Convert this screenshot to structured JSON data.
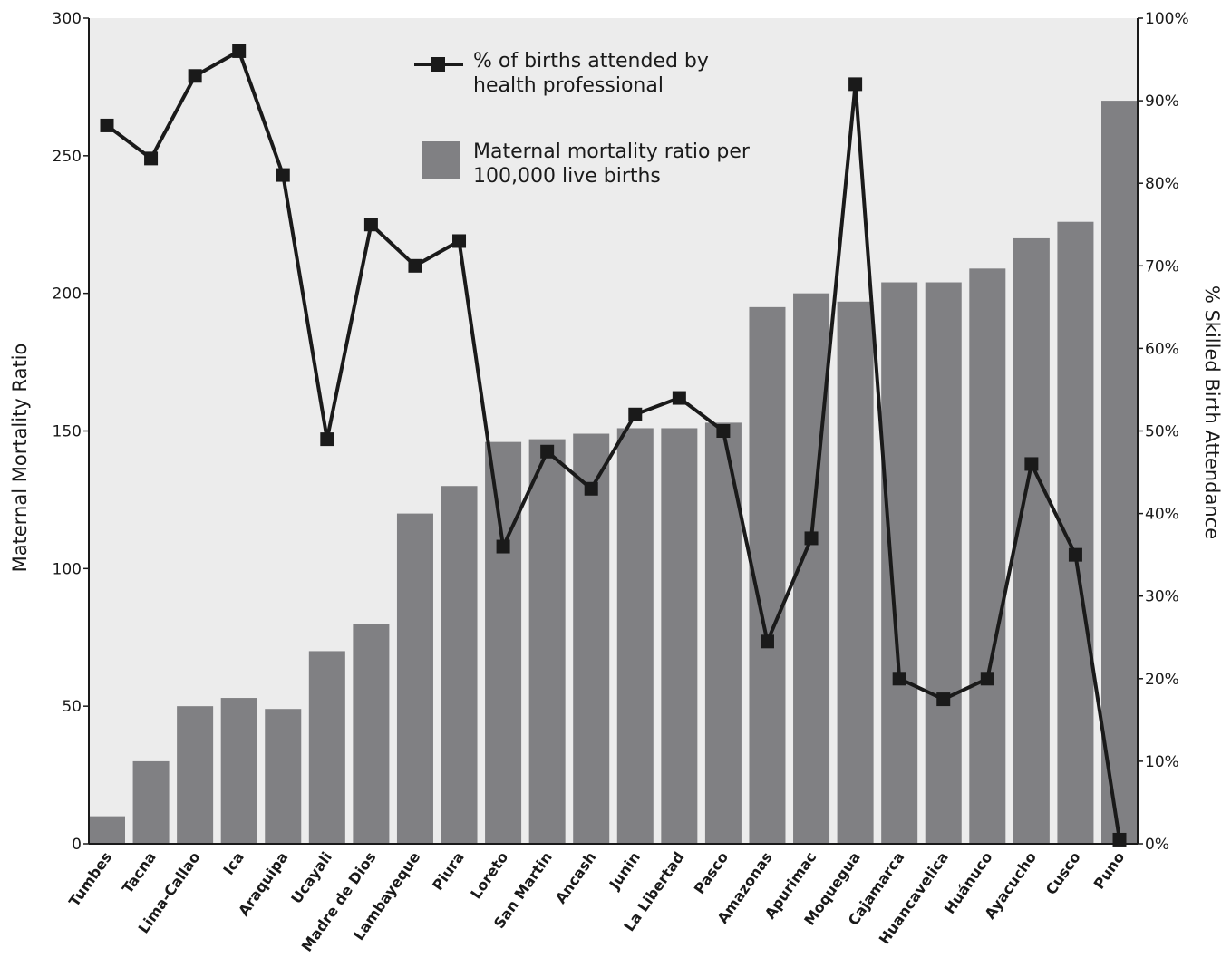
{
  "chart_data": {
    "type": "bar",
    "categories": [
      "Tumbes",
      "Tacna",
      "Lima-Callao",
      "Ica",
      "Araquipa",
      "Ucayali",
      "Madre de Dios",
      "Lambayeque",
      "Piura",
      "Loreto",
      "San Martin",
      "Ancash",
      "Junin",
      "La Libertad",
      "Pasco",
      "Amazonas",
      "Apurimac",
      "Moquegua",
      "Cajamarca",
      "Huancavelica",
      "Huánuco",
      "Ayacucho",
      "Cusco",
      "Puno"
    ],
    "series": [
      {
        "name": "Maternal mortality ratio per 100,000 live births",
        "type": "bar",
        "axis": "left",
        "values": [
          10,
          30,
          50,
          53,
          49,
          70,
          80,
          120,
          130,
          146,
          147,
          149,
          151,
          151,
          153,
          195,
          200,
          197,
          204,
          204,
          209,
          220,
          226,
          270
        ]
      },
      {
        "name": "% of births attended by health professional",
        "type": "line",
        "axis": "right",
        "values": [
          87,
          83,
          93,
          96,
          81,
          49,
          75,
          70,
          73,
          36,
          47.5,
          43,
          52,
          54,
          50,
          24.5,
          37,
          92,
          20,
          17.5,
          20,
          46,
          35,
          0.5
        ]
      }
    ],
    "left_axis": {
      "label": "Maternal Mortality Ratio",
      "range": [
        0,
        300
      ],
      "ticks": [
        "0",
        "50",
        "100",
        "150",
        "200",
        "250",
        "300"
      ]
    },
    "right_axis": {
      "label": "% Skilled Birth Attendance",
      "range": [
        0,
        100
      ],
      "ticks": [
        "0%",
        "10%",
        "20%",
        "30%",
        "40%",
        "50%",
        "60%",
        "70%",
        "80%",
        "90%",
        "100%"
      ]
    },
    "legend": {
      "placement": "top-center",
      "line_label_lines": [
        "% of births attended by",
        "health professional"
      ],
      "bar_label_lines": [
        "Maternal mortality ratio per",
        "100,000 live births"
      ]
    },
    "colors": {
      "plot_background": "#ececec",
      "bar": "#808083",
      "line": "#1a1a1a"
    },
    "grid": false
  }
}
